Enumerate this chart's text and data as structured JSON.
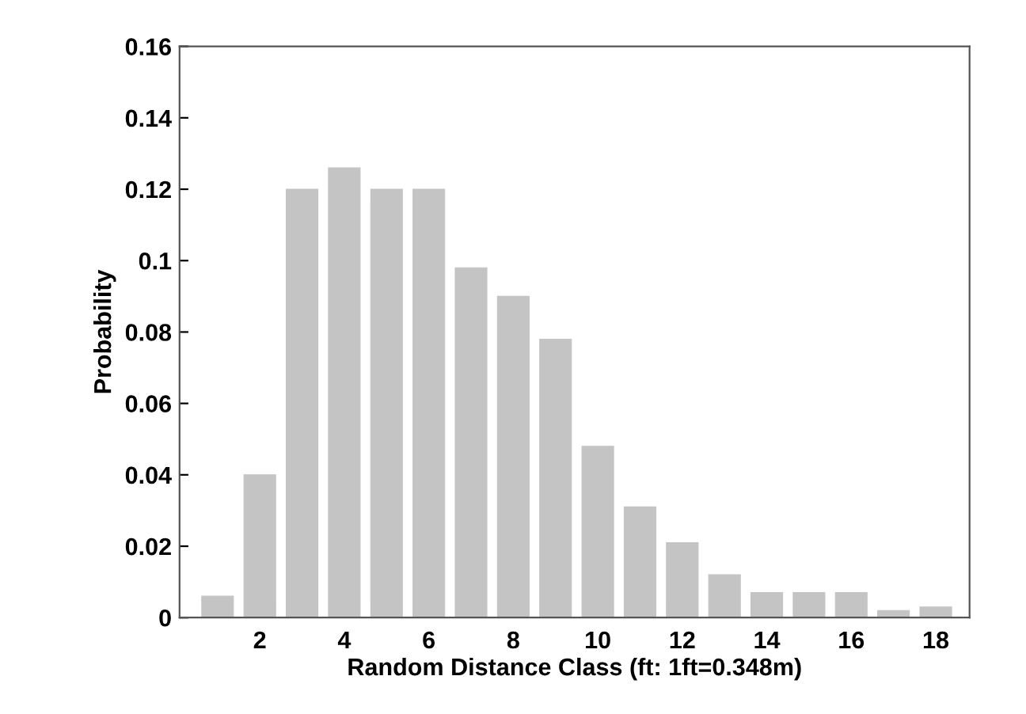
{
  "chart_data": {
    "type": "bar",
    "xlabel": "Random Distance Class (ft: 1ft=0.348m)",
    "ylabel": "Probability",
    "x": [
      1,
      2,
      3,
      4,
      5,
      6,
      7,
      8,
      9,
      10,
      11,
      12,
      13,
      14,
      15,
      16,
      17,
      18
    ],
    "values": [
      0.006,
      0.04,
      0.12,
      0.126,
      0.12,
      0.12,
      0.098,
      0.09,
      0.078,
      0.048,
      0.031,
      0.021,
      0.012,
      0.007,
      0.007,
      0.007,
      0.002,
      0.003
    ],
    "color": "#c4c4c4",
    "xlim": [
      0.1,
      18.8
    ],
    "xticks": [
      2,
      4,
      6,
      8,
      10,
      12,
      14,
      16,
      18
    ],
    "ylim": [
      0,
      0.16
    ],
    "yticks": [
      0,
      0.02,
      0.04,
      0.06,
      0.08,
      0.1,
      0.12,
      0.14,
      0.16
    ],
    "grid": false,
    "legend": false
  }
}
